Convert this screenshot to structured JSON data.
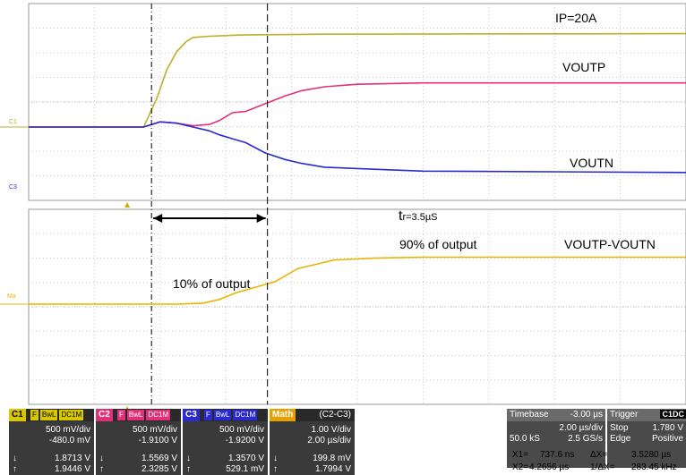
{
  "chart_data": [
    {
      "type": "line",
      "panel": "top",
      "x_unit": "µs",
      "xlim": [
        -3,
        17
      ],
      "x_divisions": 10,
      "y_divisions": 8,
      "grid": true,
      "series": [
        {
          "name": "IP=20A",
          "channel": "C1",
          "color": "#bdb02a",
          "x": [
            -3,
            0.5,
            0.9,
            1.2,
            1.5,
            1.8,
            2.0,
            2.5,
            3.5,
            6,
            17
          ],
          "y": [
            0,
            0,
            1.1,
            2.2,
            2.9,
            3.3,
            3.45,
            3.5,
            3.55,
            3.58,
            3.6
          ]
        },
        {
          "name": "VOUTP",
          "channel": "C2",
          "color": "#e0307a",
          "x": [
            -3,
            0.5,
            1.0,
            1.5,
            2.0,
            2.5,
            2.8,
            3.2,
            3.6,
            4.2,
            4.8,
            5.3,
            6.0,
            7,
            9,
            17
          ],
          "y": [
            0,
            0,
            0.2,
            0.15,
            0.05,
            0.1,
            0.25,
            0.55,
            0.6,
            0.9,
            1.2,
            1.4,
            1.55,
            1.65,
            1.7,
            1.7
          ]
        },
        {
          "name": "VOUTN",
          "channel": "C3",
          "color": "#2a2ad0",
          "x": [
            -3,
            0.5,
            1.0,
            1.5,
            2.0,
            2.5,
            2.8,
            3.2,
            3.6,
            4.2,
            4.8,
            5.3,
            6.0,
            7,
            9,
            17
          ],
          "y": [
            0,
            0,
            0.2,
            0.15,
            0.0,
            -0.15,
            -0.3,
            -0.45,
            -0.6,
            -1.0,
            -1.25,
            -1.4,
            -1.55,
            -1.6,
            -1.7,
            -1.75
          ]
        }
      ],
      "labels": [
        "IP=20A",
        "VOUTP",
        "VOUTN"
      ],
      "channel_markers": [
        "C1",
        "C3"
      ]
    },
    {
      "type": "line",
      "panel": "bottom",
      "x_unit": "µs",
      "xlim": [
        -3,
        17
      ],
      "x_divisions": 10,
      "y_divisions": 8,
      "grid": true,
      "series": [
        {
          "name": "VOUTP-VOUTN",
          "channel": "Math",
          "color": "#e8b400",
          "x": [
            -3,
            1.5,
            2.3,
            2.8,
            3.3,
            3.9,
            4.5,
            5.2,
            5.7,
            6.3,
            7.5,
            9,
            17
          ],
          "y": [
            0,
            0,
            0.05,
            0.25,
            0.6,
            0.9,
            1.2,
            1.9,
            2.1,
            2.35,
            2.45,
            2.5,
            2.5
          ]
        }
      ],
      "labels": [
        "VOUTP-VOUTN",
        "10% of output",
        "90% of output"
      ],
      "rise_time_label": "t",
      "rise_time_sub": "r=3.5µS",
      "channel_markers": [
        "Ma"
      ]
    }
  ],
  "cursors": {
    "x1_us": 0.7376,
    "x2_us": 4.2656
  },
  "channels": [
    {
      "tag": "C1",
      "flags": [
        "F",
        "BwL",
        "DC1M"
      ],
      "color": "#d8c800",
      "vdiv": "500 mV/div",
      "offset": "-480.0 mV",
      "min": "1.8713 V",
      "max": "1.9446 V"
    },
    {
      "tag": "C2",
      "flags": [
        "F",
        "BwL",
        "DC1M"
      ],
      "color": "#e0307a",
      "vdiv": "500 mV/div",
      "offset": "-1.9100 V",
      "min": "1.5569 V",
      "max": "2.3285 V"
    },
    {
      "tag": "C3",
      "flags": [
        "F",
        "BwL",
        "DC1M"
      ],
      "color": "#2a2ad0",
      "vdiv": "500 mV/div",
      "offset": "-1.9200 V",
      "min": "1.3570 V",
      "max": "529.1 mV"
    },
    {
      "tag": "Math",
      "flags": [],
      "color": "#e8a000",
      "formula": "(C2-C3)",
      "vdiv": "1.00 V/div",
      "offset": "2.00 µs/div",
      "min": "199.8 mV",
      "max": "1.7994 V"
    }
  ],
  "timebase": {
    "label": "Timebase",
    "delay": "-3.00 µs",
    "tdiv": "2.00 µs/div",
    "samples": "50.0 kS",
    "rate": "2.5 GS/s"
  },
  "trigger": {
    "label": "Trigger",
    "ch": "C1",
    "coupling": "DC",
    "mode": "Stop",
    "level": "1.780 V",
    "type": "Edge",
    "slope": "Positive"
  },
  "measurements": {
    "x1_label": "X1=",
    "x1": "737.6 ns",
    "dx_label": "ΔX=",
    "dx": "3.5280 µs",
    "x2_label": "X2=",
    "x2": "4.2656 µs",
    "inv_label": "1/ΔX=",
    "inv": "283.45 kHz"
  }
}
